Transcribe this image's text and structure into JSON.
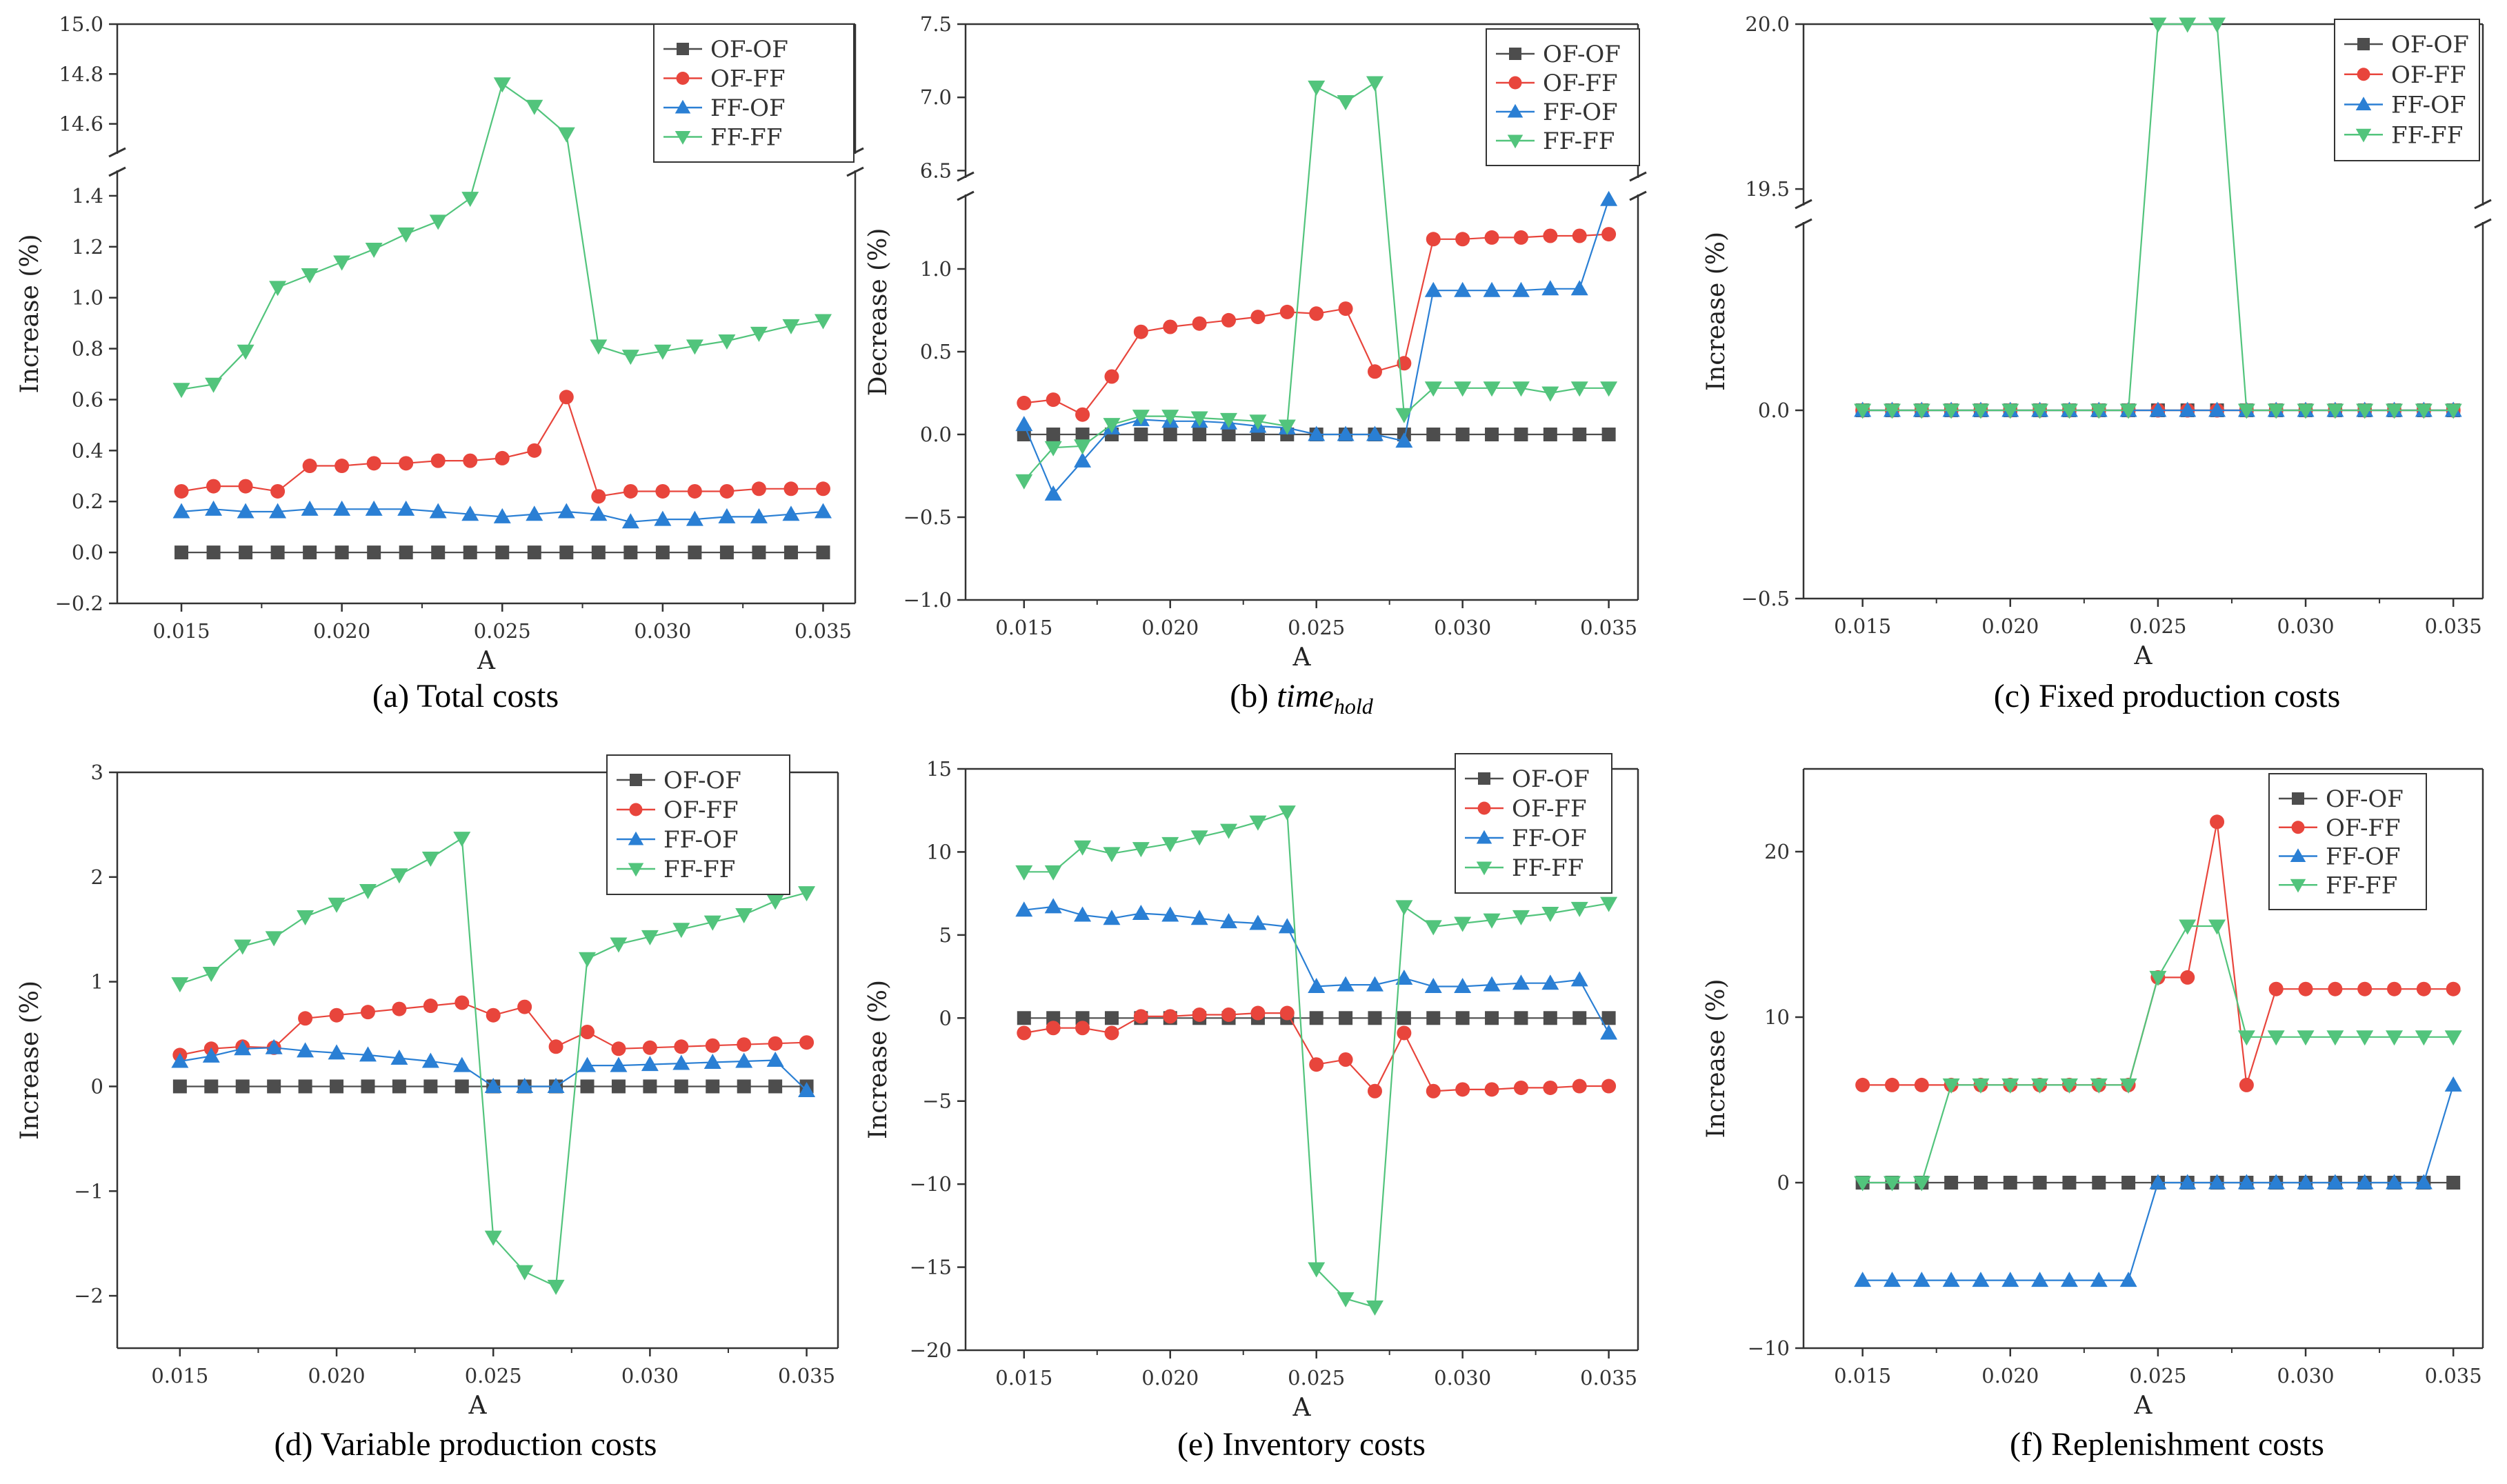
{
  "figure": {
    "series_names": [
      "OF-OF",
      "OF-FF",
      "FF-OF",
      "FF-FF"
    ],
    "series_colors": [
      "#4d4d4d",
      "#e8453c",
      "#2a7fd4",
      "#52c47c"
    ],
    "series_markers": [
      "square",
      "circle",
      "triangle-up",
      "triangle-down"
    ]
  },
  "chart_data": [
    {
      "id": "a",
      "type": "line",
      "title": "(a) Total costs",
      "caption": {
        "prefix": "(a) ",
        "main": "Total costs",
        "sub": ""
      },
      "xlabel": "A",
      "ylabel": "Increase (%)",
      "xlim": [
        0.013,
        0.036
      ],
      "xticks": [
        0.015,
        0.02,
        0.025,
        0.03,
        0.035
      ],
      "xtick_labels": [
        "0.015",
        "0.020",
        "0.025",
        "0.030",
        "0.035"
      ],
      "y_break": true,
      "lower_ylim": [
        -0.2,
        1.5
      ],
      "upper_ylim": [
        14.48,
        15.0
      ],
      "lower_yticks": [
        -0.2,
        0.0,
        0.2,
        0.4,
        0.6,
        0.8,
        1.0,
        1.2,
        1.4
      ],
      "lower_ytick_labels": [
        "−0.2",
        "0.0",
        "0.2",
        "0.4",
        "0.6",
        "0.8",
        "1.0",
        "1.2",
        "1.4"
      ],
      "upper_yticks": [
        14.6,
        14.8,
        15.0
      ],
      "upper_ytick_labels": [
        "14.6",
        "14.8",
        "15.0"
      ],
      "legend_position": "top-right",
      "x": [
        0.015,
        0.016,
        0.017,
        0.018,
        0.019,
        0.02,
        0.021,
        0.022,
        0.023,
        0.024,
        0.025,
        0.026,
        0.027,
        0.028,
        0.029,
        0.03,
        0.031,
        0.032,
        0.033,
        0.034,
        0.035
      ],
      "series": [
        {
          "name": "OF-OF",
          "values": [
            0,
            0,
            0,
            0,
            0,
            0,
            0,
            0,
            0,
            0,
            0,
            0,
            0,
            0,
            0,
            0,
            0,
            0,
            0,
            0,
            0
          ]
        },
        {
          "name": "OF-FF",
          "values": [
            0.24,
            0.26,
            0.26,
            0.24,
            0.34,
            0.34,
            0.35,
            0.35,
            0.36,
            0.36,
            0.37,
            0.4,
            0.61,
            0.22,
            0.24,
            0.24,
            0.24,
            0.24,
            0.25,
            0.25,
            0.25
          ]
        },
        {
          "name": "FF-OF",
          "values": [
            0.16,
            0.17,
            0.16,
            0.16,
            0.17,
            0.17,
            0.17,
            0.17,
            0.16,
            0.15,
            0.14,
            0.15,
            0.16,
            0.15,
            0.12,
            0.13,
            0.13,
            0.14,
            0.14,
            0.15,
            0.16
          ]
        },
        {
          "name": "FF-FF",
          "values": [
            0.64,
            0.66,
            0.79,
            1.04,
            1.09,
            1.14,
            1.19,
            1.25,
            1.3,
            1.39,
            14.76,
            14.67,
            14.56,
            0.81,
            0.77,
            0.79,
            0.81,
            0.83,
            0.86,
            0.89,
            0.91
          ]
        }
      ]
    },
    {
      "id": "b",
      "type": "line",
      "title": "(b) time_hold",
      "caption": {
        "prefix": "(b) ",
        "main": "time",
        "sub": "hold"
      },
      "xlabel": "A",
      "ylabel": "Decrease (%)",
      "xlim": [
        0.013,
        0.036
      ],
      "xticks": [
        0.015,
        0.02,
        0.025,
        0.03,
        0.035
      ],
      "xtick_labels": [
        "0.015",
        "0.020",
        "0.025",
        "0.030",
        "0.035"
      ],
      "y_break": true,
      "lower_ylim": [
        -1.0,
        1.45
      ],
      "upper_ylim": [
        6.45,
        7.5
      ],
      "lower_yticks": [
        -1.0,
        -0.5,
        0.0,
        0.5,
        1.0
      ],
      "lower_ytick_labels": [
        "−1.0",
        "−0.5",
        "0.0",
        "0.5",
        "1.0"
      ],
      "upper_yticks": [
        6.5,
        7.0,
        7.5
      ],
      "upper_ytick_labels": [
        "6.5",
        "7.0",
        "7.5"
      ],
      "legend_position": "top-right",
      "x": [
        0.015,
        0.016,
        0.017,
        0.018,
        0.019,
        0.02,
        0.021,
        0.022,
        0.023,
        0.024,
        0.025,
        0.026,
        0.027,
        0.028,
        0.029,
        0.03,
        0.031,
        0.032,
        0.033,
        0.034,
        0.035
      ],
      "series": [
        {
          "name": "OF-OF",
          "values": [
            0,
            0,
            0,
            0,
            0,
            0,
            0,
            0,
            0,
            0,
            0,
            0,
            0,
            0,
            0,
            0,
            0,
            0,
            0,
            0,
            0
          ]
        },
        {
          "name": "OF-FF",
          "values": [
            0.19,
            0.21,
            0.12,
            0.35,
            0.62,
            0.65,
            0.67,
            0.69,
            0.71,
            0.74,
            0.73,
            0.76,
            0.38,
            0.43,
            1.18,
            1.18,
            1.19,
            1.19,
            1.2,
            1.2,
            1.21
          ]
        },
        {
          "name": "FF-OF",
          "values": [
            0.06,
            -0.36,
            -0.16,
            0.04,
            0.09,
            0.08,
            0.08,
            0.07,
            0.05,
            0.04,
            0.0,
            0.0,
            0.0,
            -0.04,
            0.87,
            0.87,
            0.87,
            0.87,
            0.88,
            0.88,
            1.42
          ]
        },
        {
          "name": "FF-FF",
          "values": [
            -0.28,
            -0.08,
            -0.07,
            0.06,
            0.11,
            0.11,
            0.1,
            0.09,
            0.08,
            0.05,
            7.07,
            6.97,
            7.1,
            0.12,
            0.28,
            0.28,
            0.28,
            0.28,
            0.25,
            0.28,
            0.28
          ]
        }
      ]
    },
    {
      "id": "c",
      "type": "line",
      "title": "(c) Fixed production costs",
      "caption": {
        "prefix": "(c) ",
        "main": "Fixed production costs",
        "sub": ""
      },
      "xlabel": "A",
      "ylabel": "Increase (%)",
      "xlim": [
        0.013,
        0.036
      ],
      "xticks": [
        0.015,
        0.02,
        0.025,
        0.03,
        0.035
      ],
      "xtick_labels": [
        "0.015",
        "0.020",
        "0.025",
        "0.030",
        "0.035"
      ],
      "y_break": true,
      "lower_ylim": [
        -0.5,
        0.5
      ],
      "upper_ylim": [
        19.45,
        20.0
      ],
      "lower_yticks": [
        -0.5,
        0.0
      ],
      "lower_ytick_labels": [
        "−0.5",
        "0.0"
      ],
      "upper_yticks": [
        19.5,
        20.0
      ],
      "upper_ytick_labels": [
        "19.5",
        "20.0"
      ],
      "legend_position": "top-right",
      "x": [
        0.015,
        0.016,
        0.017,
        0.018,
        0.019,
        0.02,
        0.021,
        0.022,
        0.023,
        0.024,
        0.025,
        0.026,
        0.027,
        0.028,
        0.029,
        0.03,
        0.031,
        0.032,
        0.033,
        0.034,
        0.035
      ],
      "series": [
        {
          "name": "OF-OF",
          "values": [
            0,
            0,
            0,
            0,
            0,
            0,
            0,
            0,
            0,
            0,
            0,
            0,
            0,
            0,
            0,
            0,
            0,
            0,
            0,
            0,
            0
          ]
        },
        {
          "name": "OF-FF",
          "values": [
            0,
            0,
            0,
            0,
            0,
            0,
            0,
            0,
            0,
            0,
            0,
            0,
            0,
            0,
            0,
            0,
            0,
            0,
            0,
            0,
            0
          ]
        },
        {
          "name": "FF-OF",
          "values": [
            0,
            0,
            0,
            0,
            0,
            0,
            0,
            0,
            0,
            0,
            0,
            0,
            0,
            0,
            0,
            0,
            0,
            0,
            0,
            0,
            0
          ]
        },
        {
          "name": "FF-FF",
          "values": [
            0,
            0,
            0,
            0,
            0,
            0,
            0,
            0,
            0,
            0,
            20.0,
            20.0,
            20.0,
            0,
            0,
            0,
            0,
            0,
            0,
            0,
            0
          ]
        }
      ]
    },
    {
      "id": "d",
      "type": "line",
      "title": "(d) Variable production costs",
      "caption": {
        "prefix": "(d) ",
        "main": "Variable production costs",
        "sub": ""
      },
      "xlabel": "A",
      "ylabel": "Increase (%)",
      "xlim": [
        0.013,
        0.036
      ],
      "xticks": [
        0.015,
        0.02,
        0.025,
        0.03,
        0.035
      ],
      "xtick_labels": [
        "0.015",
        "0.020",
        "0.025",
        "0.030",
        "0.035"
      ],
      "ylim": [
        -2.5,
        3.0
      ],
      "yticks": [
        -2,
        -1,
        0,
        1,
        2,
        3
      ],
      "ytick_labels": [
        "−2",
        "−1",
        "0",
        "1",
        "2",
        "3"
      ],
      "legend_position": "top-right",
      "x": [
        0.015,
        0.016,
        0.017,
        0.018,
        0.019,
        0.02,
        0.021,
        0.022,
        0.023,
        0.024,
        0.025,
        0.026,
        0.027,
        0.028,
        0.029,
        0.03,
        0.031,
        0.032,
        0.033,
        0.034,
        0.035
      ],
      "series": [
        {
          "name": "OF-OF",
          "values": [
            0,
            0,
            0,
            0,
            0,
            0,
            0,
            0,
            0,
            0,
            0,
            0,
            0,
            0,
            0,
            0,
            0,
            0,
            0,
            0,
            0
          ]
        },
        {
          "name": "OF-FF",
          "values": [
            0.3,
            0.36,
            0.38,
            0.37,
            0.65,
            0.68,
            0.71,
            0.74,
            0.77,
            0.8,
            0.68,
            0.76,
            0.38,
            0.52,
            0.36,
            0.37,
            0.38,
            0.39,
            0.4,
            0.41,
            0.42
          ]
        },
        {
          "name": "FF-OF",
          "values": [
            0.24,
            0.29,
            0.36,
            0.37,
            0.34,
            0.32,
            0.3,
            0.27,
            0.24,
            0.2,
            0.0,
            0.0,
            0.0,
            0.2,
            0.2,
            0.21,
            0.22,
            0.23,
            0.24,
            0.25,
            -0.04
          ]
        },
        {
          "name": "FF-FF",
          "values": [
            0.98,
            1.08,
            1.34,
            1.42,
            1.62,
            1.74,
            1.87,
            2.02,
            2.18,
            2.37,
            -1.44,
            -1.77,
            -1.91,
            1.22,
            1.36,
            1.43,
            1.5,
            1.57,
            1.64,
            1.77,
            1.85
          ]
        }
      ]
    },
    {
      "id": "e",
      "type": "line",
      "title": "(e) Inventory costs",
      "caption": {
        "prefix": "(e) ",
        "main": "Inventory costs",
        "sub": ""
      },
      "xlabel": "A",
      "ylabel": "Increase (%)",
      "xlim": [
        0.013,
        0.036
      ],
      "xticks": [
        0.015,
        0.02,
        0.025,
        0.03,
        0.035
      ],
      "xtick_labels": [
        "0.015",
        "0.020",
        "0.025",
        "0.030",
        "0.035"
      ],
      "ylim": [
        -20,
        15
      ],
      "yticks": [
        -20,
        -15,
        -10,
        -5,
        0,
        5,
        10,
        15
      ],
      "ytick_labels": [
        "−20",
        "−15",
        "−10",
        "−5",
        "0",
        "5",
        "10",
        "15"
      ],
      "legend_position": "top-right",
      "x": [
        0.015,
        0.016,
        0.017,
        0.018,
        0.019,
        0.02,
        0.021,
        0.022,
        0.023,
        0.024,
        0.025,
        0.026,
        0.027,
        0.028,
        0.029,
        0.03,
        0.031,
        0.032,
        0.033,
        0.034,
        0.035
      ],
      "series": [
        {
          "name": "OF-OF",
          "values": [
            0,
            0,
            0,
            0,
            0,
            0,
            0,
            0,
            0,
            0,
            0,
            0,
            0,
            0,
            0,
            0,
            0,
            0,
            0,
            0,
            0
          ]
        },
        {
          "name": "OF-FF",
          "values": [
            -0.9,
            -0.6,
            -0.6,
            -0.9,
            0.1,
            0.1,
            0.2,
            0.2,
            0.3,
            0.3,
            -2.8,
            -2.5,
            -4.4,
            -0.9,
            -4.4,
            -4.3,
            -4.3,
            -4.2,
            -4.2,
            -4.1,
            -4.1
          ]
        },
        {
          "name": "FF-OF",
          "values": [
            6.5,
            6.7,
            6.2,
            6.0,
            6.3,
            6.2,
            6.0,
            5.8,
            5.7,
            5.5,
            1.9,
            2.0,
            2.0,
            2.4,
            1.9,
            1.9,
            2.0,
            2.1,
            2.1,
            2.3,
            -0.9
          ]
        },
        {
          "name": "FF-FF",
          "values": [
            8.8,
            8.8,
            10.3,
            9.9,
            10.2,
            10.5,
            10.9,
            11.3,
            11.8,
            12.4,
            -15.1,
            -16.9,
            -17.4,
            6.7,
            5.5,
            5.7,
            5.9,
            6.1,
            6.3,
            6.6,
            6.9
          ]
        }
      ]
    },
    {
      "id": "f",
      "type": "line",
      "title": "(f) Replenishment costs",
      "caption": {
        "prefix": "(f) ",
        "main": "Replenishment costs",
        "sub": ""
      },
      "xlabel": "A",
      "ylabel": "Increase (%)",
      "xlim": [
        0.013,
        0.036
      ],
      "xticks": [
        0.015,
        0.02,
        0.025,
        0.03,
        0.035
      ],
      "xtick_labels": [
        "0.015",
        "0.020",
        "0.025",
        "0.030",
        "0.035"
      ],
      "ylim": [
        -10,
        25
      ],
      "yticks": [
        -10,
        0,
        10,
        20
      ],
      "ytick_labels": [
        "−10",
        "0",
        "10",
        "20"
      ],
      "legend_position": "top-right",
      "x": [
        0.015,
        0.016,
        0.017,
        0.018,
        0.019,
        0.02,
        0.021,
        0.022,
        0.023,
        0.024,
        0.025,
        0.026,
        0.027,
        0.028,
        0.029,
        0.03,
        0.031,
        0.032,
        0.033,
        0.034,
        0.035
      ],
      "series": [
        {
          "name": "OF-OF",
          "values": [
            0,
            0,
            0,
            0,
            0,
            0,
            0,
            0,
            0,
            0,
            0,
            0,
            0,
            0,
            0,
            0,
            0,
            0,
            0,
            0,
            0
          ]
        },
        {
          "name": "OF-FF",
          "values": [
            5.9,
            5.9,
            5.9,
            5.9,
            5.9,
            5.9,
            5.9,
            5.9,
            5.9,
            5.9,
            12.4,
            12.4,
            21.8,
            5.9,
            11.7,
            11.7,
            11.7,
            11.7,
            11.7,
            11.7,
            11.7
          ]
        },
        {
          "name": "FF-OF",
          "values": [
            -5.9,
            -5.9,
            -5.9,
            -5.9,
            -5.9,
            -5.9,
            -5.9,
            -5.9,
            -5.9,
            -5.9,
            0,
            0,
            0,
            0,
            0,
            0,
            0,
            0,
            0,
            0,
            5.9
          ]
        },
        {
          "name": "FF-FF",
          "values": [
            0,
            0,
            0,
            5.9,
            5.9,
            5.9,
            5.9,
            5.9,
            5.9,
            5.9,
            12.4,
            15.5,
            15.5,
            8.8,
            8.8,
            8.8,
            8.8,
            8.8,
            8.8,
            8.8,
            8.8
          ]
        }
      ]
    }
  ]
}
